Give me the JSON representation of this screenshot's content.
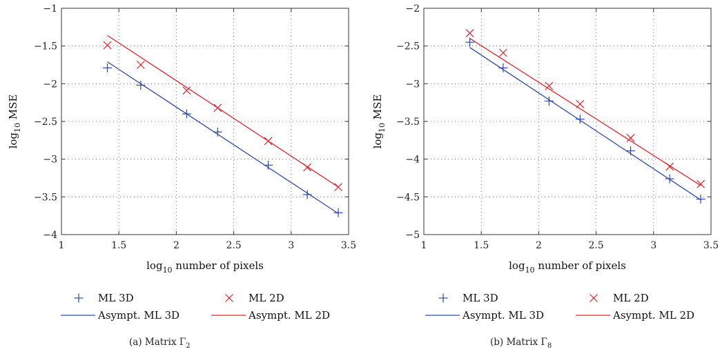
{
  "chart_data": [
    {
      "type": "line",
      "panel": "a",
      "caption_prefix": "(a)  Matrix Γ",
      "caption_sub": "2",
      "xlabel_prefix": "log",
      "xlabel_sub": "10",
      "xlabel_suffix": " number of pixels",
      "ylabel_prefix": "log",
      "ylabel_sub": "10",
      "ylabel_suffix": " MSE",
      "xlim": [
        1,
        3.5
      ],
      "ylim": [
        -4,
        -1
      ],
      "xticks": [
        1,
        1.5,
        2,
        2.5,
        3,
        3.5
      ],
      "xtick_labels": [
        "1",
        "1.5",
        "2",
        "2.5",
        "3",
        "3.5"
      ],
      "yticks": [
        -4,
        -3.5,
        -3,
        -2.5,
        -2,
        -1.5,
        -1
      ],
      "ytick_labels": [
        "−4",
        "−3.5",
        "−3",
        "−2.5",
        "−2",
        "−1.5",
        "−1"
      ],
      "grid": true,
      "legend_placement": "below",
      "series": [
        {
          "name": "ML 3D",
          "kind": "marker",
          "marker": "plus",
          "color": "#2b4aa8",
          "x": [
            1.4,
            1.69,
            2.09,
            2.36,
            2.8,
            3.14,
            3.41
          ],
          "y": [
            -1.79,
            -2.02,
            -2.4,
            -2.64,
            -3.08,
            -3.47,
            -3.71
          ]
        },
        {
          "name": "ML 2D",
          "kind": "marker",
          "marker": "cross",
          "color": "#e0242b",
          "x": [
            1.4,
            1.69,
            2.09,
            2.36,
            2.8,
            3.14,
            3.41
          ],
          "y": [
            -1.49,
            -1.75,
            -2.09,
            -2.32,
            -2.76,
            -3.11,
            -3.37
          ]
        },
        {
          "name": "Asympt. ML 3D",
          "kind": "line",
          "color": "#2b4aa8",
          "x": [
            1.4,
            3.41
          ],
          "y": [
            -1.71,
            -3.72
          ]
        },
        {
          "name": "Asympt. ML 2D",
          "kind": "line",
          "color": "#e0242b",
          "x": [
            1.4,
            3.41
          ],
          "y": [
            -1.36,
            -3.37
          ]
        }
      ]
    },
    {
      "type": "line",
      "panel": "b",
      "caption_prefix": "(b)  Matrix Γ",
      "caption_sub": "8",
      "xlabel_prefix": "log",
      "xlabel_sub": "10",
      "xlabel_suffix": " number of pixels",
      "ylabel_prefix": "log",
      "ylabel_sub": "10",
      "ylabel_suffix": " MSE",
      "xlim": [
        1,
        3.5
      ],
      "ylim": [
        -5,
        -2
      ],
      "xticks": [
        1,
        1.5,
        2,
        2.5,
        3,
        3.5
      ],
      "xtick_labels": [
        "1",
        "1.5",
        "2",
        "2.5",
        "3",
        "3.5"
      ],
      "yticks": [
        -5,
        -4.5,
        -4,
        -3.5,
        -3,
        -2.5,
        -2
      ],
      "ytick_labels": [
        "−5",
        "−4.5",
        "−4",
        "−3.5",
        "−3",
        "−2.5",
        "−2"
      ],
      "grid": true,
      "legend_placement": "below",
      "series": [
        {
          "name": "ML 3D",
          "kind": "marker",
          "marker": "plus",
          "color": "#2b4aa8",
          "x": [
            1.4,
            1.69,
            2.09,
            2.36,
            2.8,
            3.14,
            3.41
          ],
          "y": [
            -2.45,
            -2.79,
            -3.23,
            -3.47,
            -3.89,
            -4.26,
            -4.53
          ]
        },
        {
          "name": "ML 2D",
          "kind": "marker",
          "marker": "cross",
          "color": "#e0242b",
          "x": [
            1.4,
            1.69,
            2.09,
            2.36,
            2.8,
            3.14,
            3.41
          ],
          "y": [
            -2.33,
            -2.59,
            -3.03,
            -3.27,
            -3.72,
            -4.1,
            -4.33
          ]
        },
        {
          "name": "Asympt. ML 3D",
          "kind": "line",
          "color": "#2b4aa8",
          "x": [
            1.4,
            3.41
          ],
          "y": [
            -2.52,
            -4.54
          ]
        },
        {
          "name": "Asympt. ML 2D",
          "kind": "line",
          "color": "#e0242b",
          "x": [
            1.4,
            3.41
          ],
          "y": [
            -2.4,
            -4.35
          ]
        }
      ]
    }
  ]
}
